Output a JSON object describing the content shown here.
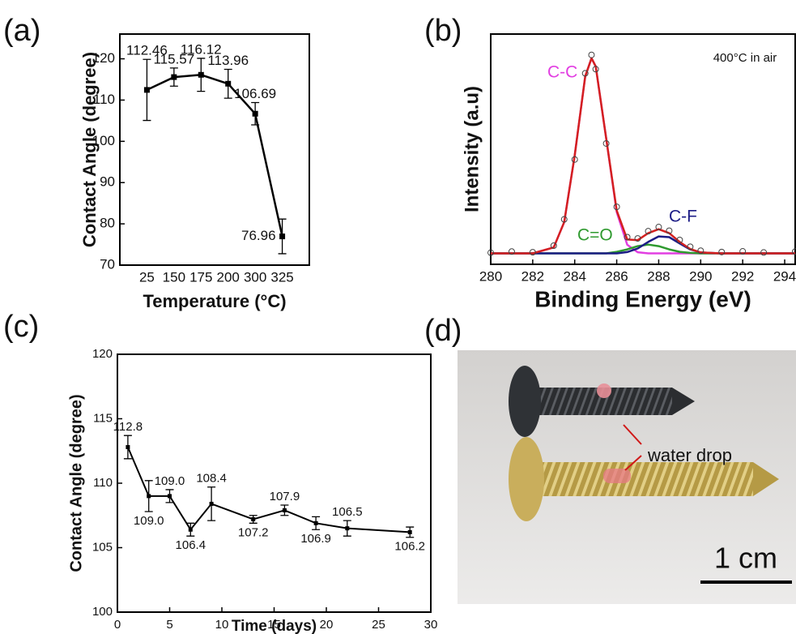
{
  "chart_data": [
    {
      "type": "line",
      "label": "(a)",
      "x_label": "Temperature (°C)",
      "y_label": "Contact Angle (degree)",
      "categories": [
        "25",
        "150",
        "175",
        "200",
        "300",
        "325"
      ],
      "values": [
        112.46,
        115.57,
        116.12,
        113.96,
        106.69,
        76.96
      ],
      "errors": [
        7.4,
        2.2,
        4,
        3.5,
        2.7,
        4.2
      ],
      "color": "#000000",
      "ylim": [
        70,
        126
      ],
      "yticks": [
        70,
        80,
        90,
        100,
        110,
        120
      ]
    },
    {
      "type": "line",
      "label": "(b)",
      "x_label": "Binding Energy (eV)",
      "y_label": "Intensity (a.u)",
      "annotation": "400°C in air",
      "x": [
        280,
        281,
        282,
        283,
        283.5,
        284,
        284.5,
        284.8,
        285,
        285.5,
        286,
        286.5,
        287,
        287.5,
        288,
        288.5,
        289,
        289.5,
        290,
        291,
        292,
        293,
        294.5
      ],
      "xlim": [
        280,
        294.5
      ],
      "xticks": [
        280,
        282,
        284,
        286,
        288,
        290,
        292,
        294
      ],
      "ylim": [
        -5,
        100
      ],
      "series": [
        {
          "name": "C-C",
          "color": "#e23ee2",
          "values": [
            0,
            0,
            0,
            2.7,
            14.3,
            44.6,
            80.7,
            89,
            85.2,
            52.4,
            18.8,
            3.9,
            0.5,
            0,
            0,
            0,
            0,
            0,
            0,
            0,
            0,
            0,
            0
          ]
        },
        {
          "name": "C=O",
          "color": "#2f9a2f",
          "values": [
            0,
            0,
            0,
            0,
            0,
            0,
            0,
            0,
            0,
            0,
            0.7,
            1.8,
            3.3,
            4,
            3.3,
            1.8,
            0.7,
            0.2,
            0,
            0,
            0,
            0,
            0
          ]
        },
        {
          "name": "C-F",
          "color": "#1c1c86",
          "values": [
            0,
            0,
            0,
            0,
            0,
            0,
            0,
            0,
            0,
            0,
            0,
            0.6,
            2.2,
            5.2,
            7.7,
            7.4,
            4.5,
            1.8,
            0.4,
            0,
            0,
            0,
            0
          ]
        },
        {
          "color": "#d42020",
          "values": [
            0,
            0,
            0,
            2.7,
            14.3,
            44.6,
            80.7,
            89,
            85.2,
            52.4,
            19.5,
            6.3,
            6.0,
            9.2,
            11.0,
            9.2,
            5.2,
            2.0,
            0.4,
            0,
            0,
            0,
            0
          ]
        },
        {
          "color": "#444444",
          "marker": "circle",
          "values": [
            0.3,
            0.8,
            0.5,
            3.5,
            15.5,
            42.8,
            82.1,
            90.5,
            84.0,
            50.1,
            21.2,
            7.4,
            6.8,
            10.1,
            12.0,
            10.3,
            6.1,
            3.0,
            1.2,
            0.6,
            0.9,
            0.4,
            0.8
          ]
        }
      ]
    },
    {
      "type": "line",
      "label": "(c)",
      "x_label": "Time (days)",
      "y_label": "Contact Angle (degree)",
      "x": [
        1,
        3,
        5,
        7,
        9,
        13,
        16,
        19,
        22,
        28
      ],
      "values": [
        112.8,
        109.0,
        109.0,
        106.4,
        108.4,
        107.2,
        107.9,
        106.9,
        106.5,
        106.2
      ],
      "value_labels": [
        "112.8",
        "109.0",
        "109.0",
        "106.4",
        "108.4",
        "107.2",
        "107.9",
        "106.9",
        "106.5",
        "106.2"
      ],
      "errors": [
        0.9,
        1.2,
        0.5,
        0.5,
        1.3,
        0.3,
        0.4,
        0.5,
        0.6,
        0.4
      ],
      "color": "#000000",
      "xlim": [
        0,
        30
      ],
      "xticks": [
        0,
        5,
        10,
        15,
        20,
        25,
        30
      ],
      "ylim": [
        100,
        120
      ],
      "yticks": [
        100,
        105,
        110,
        115,
        120
      ]
    }
  ],
  "photo": {
    "label": "(d)",
    "annotation": "water drop",
    "scale_bar": "1 cm"
  }
}
